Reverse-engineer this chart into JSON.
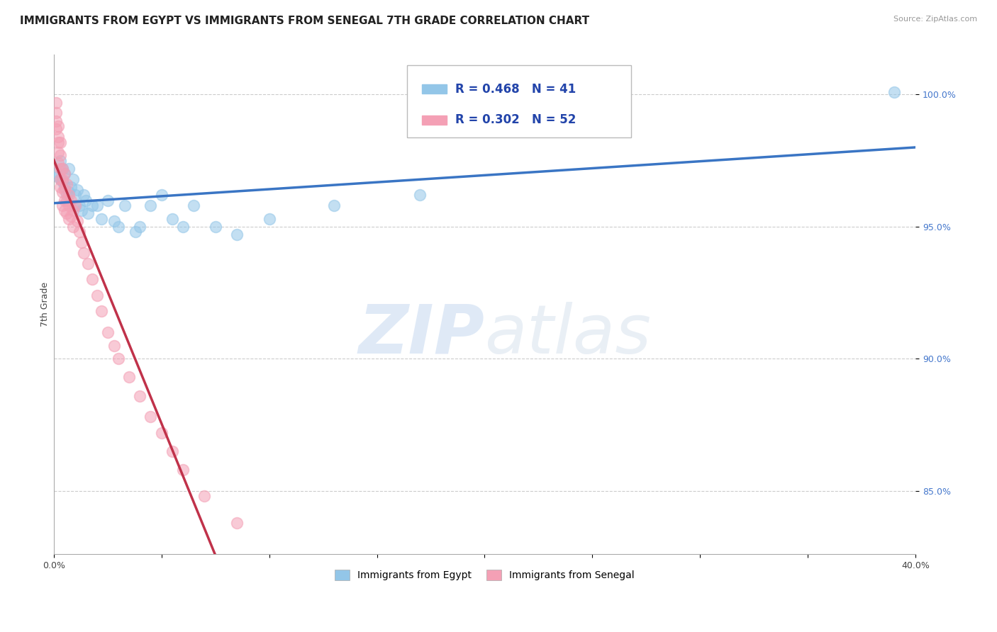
{
  "title": "IMMIGRANTS FROM EGYPT VS IMMIGRANTS FROM SENEGAL 7TH GRADE CORRELATION CHART",
  "source": "Source: ZipAtlas.com",
  "ylabel": "7th Grade",
  "xlim": [
    0.0,
    0.4
  ],
  "ylim": [
    0.826,
    1.015
  ],
  "xticks": [
    0.0,
    0.05,
    0.1,
    0.15,
    0.2,
    0.25,
    0.3,
    0.35,
    0.4
  ],
  "yticks": [
    0.85,
    0.9,
    0.95,
    1.0
  ],
  "yticklabels": [
    "85.0%",
    "90.0%",
    "95.0%",
    "100.0%"
  ],
  "egypt_color": "#93c6e8",
  "senegal_color": "#f4a0b5",
  "egypt_line_color": "#3a75c4",
  "senegal_line_color": "#c0324a",
  "egypt_R": 0.468,
  "egypt_N": 41,
  "senegal_R": 0.302,
  "senegal_N": 52,
  "egypt_label": "Immigrants from Egypt",
  "senegal_label": "Immigrants from Senegal",
  "watermark_zip": "ZIP",
  "watermark_atlas": "atlas",
  "grid_color": "#cccccc",
  "background_color": "#ffffff",
  "title_fontsize": 11,
  "axis_label_fontsize": 9,
  "tick_fontsize": 9,
  "legend_fontsize": 12,
  "egypt_x": [
    0.001,
    0.002,
    0.003,
    0.003,
    0.004,
    0.004,
    0.005,
    0.005,
    0.006,
    0.007,
    0.007,
    0.008,
    0.009,
    0.01,
    0.01,
    0.011,
    0.012,
    0.013,
    0.014,
    0.015,
    0.016,
    0.018,
    0.02,
    0.022,
    0.025,
    0.028,
    0.03,
    0.033,
    0.038,
    0.04,
    0.045,
    0.05,
    0.055,
    0.06,
    0.065,
    0.075,
    0.085,
    0.1,
    0.13,
    0.17,
    0.39
  ],
  "egypt_y": [
    0.971,
    0.969,
    0.975,
    0.968,
    0.972,
    0.967,
    0.965,
    0.97,
    0.962,
    0.963,
    0.972,
    0.965,
    0.968,
    0.962,
    0.958,
    0.964,
    0.958,
    0.956,
    0.962,
    0.96,
    0.955,
    0.958,
    0.958,
    0.953,
    0.96,
    0.952,
    0.95,
    0.958,
    0.948,
    0.95,
    0.958,
    0.962,
    0.953,
    0.95,
    0.958,
    0.95,
    0.947,
    0.953,
    0.958,
    0.962,
    1.001
  ],
  "senegal_x": [
    0.001,
    0.001,
    0.001,
    0.001,
    0.002,
    0.002,
    0.002,
    0.002,
    0.002,
    0.003,
    0.003,
    0.003,
    0.003,
    0.003,
    0.004,
    0.004,
    0.004,
    0.004,
    0.005,
    0.005,
    0.005,
    0.005,
    0.006,
    0.006,
    0.006,
    0.007,
    0.007,
    0.007,
    0.008,
    0.008,
    0.009,
    0.009,
    0.01,
    0.011,
    0.012,
    0.013,
    0.014,
    0.016,
    0.018,
    0.02,
    0.022,
    0.025,
    0.028,
    0.03,
    0.035,
    0.04,
    0.045,
    0.05,
    0.055,
    0.06,
    0.07,
    0.085
  ],
  "senegal_y": [
    0.997,
    0.993,
    0.99,
    0.987,
    0.984,
    0.988,
    0.982,
    0.978,
    0.974,
    0.982,
    0.977,
    0.972,
    0.968,
    0.965,
    0.972,
    0.968,
    0.963,
    0.958,
    0.97,
    0.964,
    0.96,
    0.956,
    0.966,
    0.96,
    0.955,
    0.962,
    0.958,
    0.953,
    0.96,
    0.954,
    0.956,
    0.95,
    0.958,
    0.952,
    0.948,
    0.944,
    0.94,
    0.936,
    0.93,
    0.924,
    0.918,
    0.91,
    0.905,
    0.9,
    0.893,
    0.886,
    0.878,
    0.872,
    0.865,
    0.858,
    0.848,
    0.838
  ]
}
